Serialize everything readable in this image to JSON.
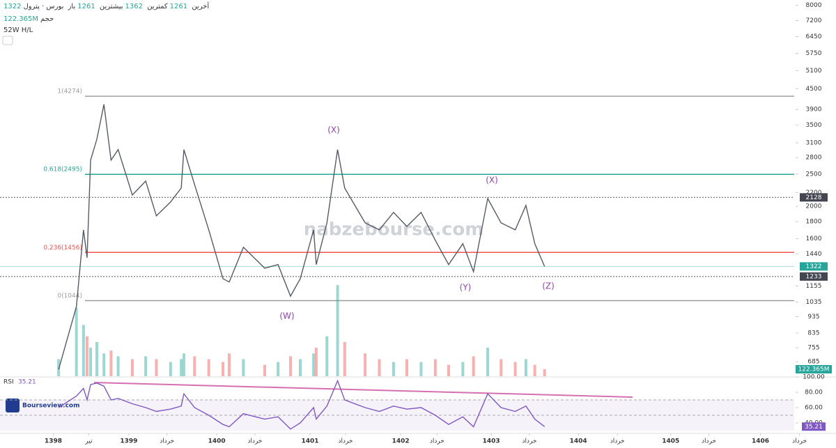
{
  "chart_data": {
    "type": "line",
    "header": {
      "symbol": "بورس · پترول",
      "open_label": "باز",
      "open": "1261",
      "high_label": "بیشترین",
      "high": "1362",
      "low_label": "کمترین",
      "low": "1261",
      "last_label": "آخرین",
      "last": "1322",
      "volume_label": "حجم",
      "volume": "122.365M",
      "range_label": "52W H/L"
    },
    "watermark": "nabzebourse.com",
    "logo": "Bourseview.com",
    "log_scale": true,
    "ylim": [
      620,
      8300
    ],
    "yticks": [
      685,
      755,
      835,
      935,
      1035,
      1155,
      1440,
      1600,
      1800,
      2000,
      2200,
      2500,
      2800,
      3100,
      3500,
      3900,
      4500,
      5100,
      5750,
      6450,
      7200,
      8000
    ],
    "price_badges": [
      {
        "value": 2128,
        "color": "#434651"
      },
      {
        "value": 1322,
        "color": "#26a69a"
      },
      {
        "value": 1233,
        "color": "#434651"
      }
    ],
    "fib_levels": [
      {
        "value": 4274,
        "label": "1(4274)",
        "color": "#9e9e9e"
      },
      {
        "value": 2495,
        "label": "0.618(2495)",
        "color": "#26a69a"
      },
      {
        "value": 1456,
        "label": "0.236(1456)",
        "color": "#ef5350"
      },
      {
        "value": 1044,
        "label": "0(1044)",
        "color": "#9e9e9e"
      }
    ],
    "annotations": [
      "(X)",
      "(X)",
      "(W)",
      "(Y)",
      "(Z)"
    ],
    "xlim": [
      1397.4,
      1406.34
    ],
    "xticks": [
      {
        "value": 1398.0,
        "label": "1398"
      },
      {
        "value": 1398.4,
        "label": "تیر"
      },
      {
        "value": 1398.85,
        "label": "1399"
      },
      {
        "value": 1399.28,
        "label": "خرداد"
      },
      {
        "value": 1399.84,
        "label": "1400"
      },
      {
        "value": 1400.27,
        "label": "خرداد"
      },
      {
        "value": 1400.89,
        "label": "1401"
      },
      {
        "value": 1401.29,
        "label": "خرداد"
      },
      {
        "value": 1401.91,
        "label": "1402"
      },
      {
        "value": 1402.32,
        "label": "خرداد"
      },
      {
        "value": 1402.93,
        "label": "1403"
      },
      {
        "value": 1403.36,
        "label": "خرداد"
      },
      {
        "value": 1403.91,
        "label": "1404"
      },
      {
        "value": 1404.35,
        "label": "خرداد"
      },
      {
        "value": 1404.95,
        "label": "1405"
      },
      {
        "value": 1405.38,
        "label": "خرداد"
      },
      {
        "value": 1405.96,
        "label": "1406"
      },
      {
        "value": 1406.4,
        "label": "خرداد"
      }
    ],
    "x": [
      1398.06,
      1398.26,
      1398.34,
      1398.38,
      1398.42,
      1398.49,
      1398.57,
      1398.65,
      1398.73,
      1398.89,
      1399.04,
      1399.16,
      1399.32,
      1399.44,
      1399.47,
      1399.59,
      1399.75,
      1399.91,
      1399.98,
      1400.14,
      1400.38,
      1400.53,
      1400.67,
      1400.78,
      1400.93,
      1400.96,
      1401.08,
      1401.2,
      1401.28,
      1401.51,
      1401.67,
      1401.83,
      1401.98,
      1402.14,
      1402.3,
      1402.45,
      1402.61,
      1402.73,
      1402.89,
      1403.04,
      1403.2,
      1403.32,
      1403.42,
      1403.53
    ],
    "series": [
      {
        "name": "پترول",
        "color": "#555b66",
        "values": [
          650,
          1002,
          1701,
          1404,
          2752,
          3177,
          4041,
          2752,
          2958,
          2163,
          2382,
          1873,
          2062,
          2270,
          2958,
          2326,
          1701,
          1215,
          1187,
          1509,
          1306,
          1339,
          1077,
          1215,
          1701,
          1339,
          1785,
          2958,
          2270,
          1785,
          1701,
          1919,
          1742,
          1919,
          1583,
          1339,
          1546,
          1275,
          2112,
          1785,
          1701,
          2013,
          1546,
          1322
        ]
      },
      {
        "name": "حجم",
        "axis": "volume",
        "color": "#26a69a",
        "values": [
          300,
          1200,
          900,
          700,
          500,
          600,
          400,
          450,
          350,
          300,
          350,
          300,
          250,
          300,
          400,
          350,
          300,
          250,
          400,
          300,
          200,
          250,
          350,
          300,
          400,
          500,
          700,
          1600,
          600,
          400,
          300,
          250,
          300,
          250,
          300,
          200,
          250,
          350,
          500,
          300,
          250,
          300,
          200,
          122.365
        ]
      },
      {
        "name": "RSI",
        "axis": "rsi",
        "color": "#7e57c2",
        "values": [
          60,
          75,
          85,
          70,
          90,
          92,
          88,
          70,
          72,
          65,
          60,
          55,
          58,
          62,
          78,
          60,
          50,
          38,
          35,
          52,
          45,
          48,
          32,
          40,
          60,
          45,
          62,
          95,
          70,
          60,
          55,
          62,
          58,
          60,
          50,
          38,
          48,
          35,
          78,
          60,
          55,
          62,
          45,
          35.21
        ]
      }
    ],
    "volume_lim": [
      0,
      6600
    ],
    "rsi_label": "RSI",
    "rsi_value": "35.21",
    "rsi_lim": [
      30,
      100
    ],
    "rsi_ticks": [
      {
        "value": 100,
        "label": "100.00"
      },
      {
        "value": 80,
        "label": "80.00"
      },
      {
        "value": 60,
        "label": "60.00"
      },
      {
        "value": 40,
        "label": "40.00"
      }
    ]
  }
}
